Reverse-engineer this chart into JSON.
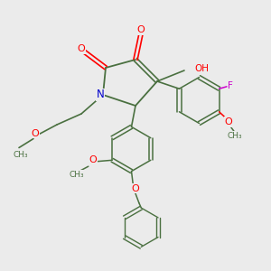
{
  "background_color": "#ebebeb",
  "bond_color": "#4a7040",
  "atom_colors": {
    "O": "#ff0000",
    "N": "#0000cc",
    "F": "#cc00cc",
    "C": "#4a7040"
  },
  "figsize": [
    3.0,
    3.0
  ],
  "dpi": 100,
  "xlim": [
    0,
    10
  ],
  "ylim": [
    0,
    10
  ]
}
